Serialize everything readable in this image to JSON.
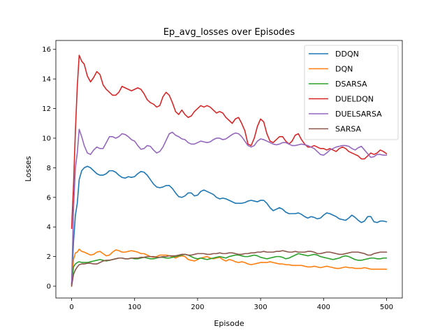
{
  "chart_data": {
    "type": "line",
    "title": "Ep_avg_losses over Episodes",
    "xlabel": "Episode",
    "ylabel": "Losses",
    "xlim": [
      -25,
      525
    ],
    "ylim": [
      -0.8,
      16.6
    ],
    "xticks": [
      0,
      100,
      200,
      300,
      400,
      500
    ],
    "yticks": [
      0,
      2,
      4,
      6,
      8,
      10,
      12,
      14,
      16
    ],
    "grid": false,
    "legend_position": "top-right",
    "series": [
      {
        "name": "DDQN",
        "color": "#1f77b4",
        "x": [
          0,
          3,
          6,
          9,
          12,
          16,
          20,
          25,
          30,
          35,
          40,
          45,
          50,
          55,
          60,
          65,
          70,
          75,
          80,
          85,
          90,
          95,
          100,
          105,
          110,
          115,
          120,
          125,
          130,
          135,
          140,
          145,
          150,
          155,
          160,
          165,
          170,
          175,
          180,
          185,
          190,
          195,
          200,
          205,
          210,
          215,
          220,
          225,
          230,
          235,
          240,
          245,
          250,
          255,
          260,
          265,
          270,
          275,
          280,
          285,
          290,
          295,
          300,
          305,
          310,
          315,
          320,
          325,
          330,
          335,
          340,
          345,
          350,
          355,
          360,
          365,
          370,
          375,
          380,
          385,
          390,
          395,
          400,
          405,
          410,
          415,
          420,
          425,
          430,
          435,
          440,
          445,
          450,
          455,
          460,
          465,
          470,
          475,
          480,
          485,
          490,
          495,
          500
        ],
        "y": [
          0.1,
          3.0,
          4.8,
          5.6,
          7.2,
          7.8,
          8.0,
          8.1,
          8.0,
          7.8,
          7.6,
          7.5,
          7.5,
          7.6,
          7.8,
          7.8,
          7.7,
          7.5,
          7.35,
          7.3,
          7.4,
          7.35,
          7.4,
          7.6,
          7.75,
          7.7,
          7.5,
          7.2,
          6.9,
          6.7,
          6.65,
          6.7,
          6.8,
          6.8,
          6.6,
          6.3,
          6.05,
          6.0,
          6.1,
          6.3,
          6.3,
          6.1,
          6.15,
          6.4,
          6.5,
          6.4,
          6.3,
          6.2,
          6.0,
          5.9,
          5.95,
          5.9,
          5.8,
          5.7,
          5.6,
          5.6,
          5.6,
          5.65,
          5.75,
          5.8,
          5.75,
          5.7,
          5.8,
          5.8,
          5.6,
          5.3,
          5.1,
          5.2,
          5.3,
          5.2,
          5.0,
          4.9,
          4.9,
          4.9,
          4.95,
          4.85,
          4.7,
          4.6,
          4.7,
          4.65,
          4.55,
          4.6,
          4.8,
          4.95,
          4.9,
          4.8,
          4.7,
          4.55,
          4.5,
          4.45,
          4.6,
          4.8,
          4.65,
          4.45,
          4.3,
          4.4,
          4.7,
          4.7,
          4.35,
          4.3,
          4.4,
          4.4,
          4.35
        ]
      },
      {
        "name": "DQN",
        "color": "#ff7f0e",
        "x": [
          0,
          3,
          6,
          9,
          12,
          16,
          20,
          25,
          30,
          35,
          40,
          45,
          50,
          55,
          60,
          65,
          70,
          75,
          80,
          85,
          90,
          95,
          100,
          105,
          110,
          115,
          120,
          125,
          130,
          135,
          140,
          145,
          150,
          155,
          160,
          165,
          170,
          175,
          180,
          185,
          190,
          195,
          200,
          205,
          210,
          215,
          220,
          225,
          230,
          235,
          240,
          245,
          250,
          255,
          260,
          265,
          270,
          275,
          280,
          285,
          290,
          295,
          300,
          305,
          310,
          315,
          320,
          325,
          330,
          335,
          340,
          345,
          350,
          355,
          360,
          365,
          370,
          375,
          380,
          385,
          390,
          395,
          400,
          405,
          410,
          415,
          420,
          425,
          430,
          435,
          440,
          445,
          450,
          455,
          460,
          465,
          470,
          475,
          480,
          485,
          490,
          495,
          500
        ],
        "y": [
          0.1,
          1.8,
          2.25,
          2.3,
          2.5,
          2.35,
          2.3,
          2.2,
          2.1,
          2.15,
          2.3,
          2.35,
          2.2,
          2.05,
          2.1,
          2.3,
          2.45,
          2.4,
          2.3,
          2.3,
          2.35,
          2.4,
          2.35,
          2.3,
          2.2,
          2.2,
          2.1,
          2.0,
          1.95,
          2.0,
          2.1,
          2.1,
          2.1,
          2.05,
          2.0,
          1.9,
          2.0,
          2.05,
          2.0,
          1.8,
          1.75,
          1.7,
          1.8,
          1.9,
          1.95,
          2.0,
          1.9,
          1.85,
          1.9,
          1.95,
          1.8,
          1.7,
          1.8,
          1.75,
          1.65,
          1.6,
          1.65,
          1.6,
          1.5,
          1.45,
          1.5,
          1.55,
          1.6,
          1.6,
          1.6,
          1.65,
          1.6,
          1.55,
          1.5,
          1.5,
          1.45,
          1.45,
          1.4,
          1.4,
          1.4,
          1.4,
          1.35,
          1.3,
          1.3,
          1.35,
          1.3,
          1.25,
          1.3,
          1.35,
          1.3,
          1.25,
          1.2,
          1.2,
          1.25,
          1.3,
          1.25,
          1.25,
          1.2,
          1.2,
          1.2,
          1.25,
          1.2,
          1.15,
          1.15,
          1.15,
          1.15,
          1.15,
          1.15
        ]
      },
      {
        "name": "DSARSA",
        "color": "#2ca02c",
        "x": [
          0,
          3,
          6,
          9,
          12,
          16,
          20,
          25,
          30,
          35,
          40,
          45,
          50,
          55,
          60,
          65,
          70,
          75,
          80,
          85,
          90,
          95,
          100,
          105,
          110,
          115,
          120,
          125,
          130,
          135,
          140,
          145,
          150,
          155,
          160,
          165,
          170,
          175,
          180,
          185,
          190,
          195,
          200,
          205,
          210,
          215,
          220,
          225,
          230,
          235,
          240,
          245,
          250,
          255,
          260,
          265,
          270,
          275,
          280,
          285,
          290,
          295,
          300,
          305,
          310,
          315,
          320,
          325,
          330,
          335,
          340,
          345,
          350,
          355,
          360,
          365,
          370,
          375,
          380,
          385,
          390,
          395,
          400,
          405,
          410,
          415,
          420,
          425,
          430,
          435,
          440,
          445,
          450,
          455,
          460,
          465,
          470,
          475,
          480,
          485,
          490,
          495,
          500
        ],
        "y": [
          0.0,
          1.3,
          1.5,
          1.6,
          1.65,
          1.6,
          1.6,
          1.6,
          1.65,
          1.7,
          1.75,
          1.8,
          1.75,
          1.7,
          1.75,
          1.8,
          1.85,
          1.9,
          1.9,
          1.85,
          1.85,
          1.9,
          1.85,
          1.85,
          1.9,
          1.95,
          1.9,
          1.85,
          1.85,
          1.9,
          1.95,
          1.95,
          1.9,
          1.9,
          1.95,
          2.0,
          2.05,
          2.1,
          2.15,
          2.1,
          2.0,
          1.9,
          1.85,
          1.9,
          1.85,
          1.8,
          1.85,
          1.9,
          1.95,
          2.0,
          1.95,
          1.9,
          2.0,
          2.05,
          2.1,
          2.1,
          2.05,
          2.0,
          2.0,
          2.05,
          2.1,
          2.05,
          1.95,
          1.9,
          1.85,
          1.9,
          1.95,
          2.0,
          2.0,
          1.95,
          1.85,
          1.9,
          2.0,
          2.1,
          2.2,
          2.15,
          2.1,
          2.05,
          2.1,
          2.15,
          2.1,
          2.0,
          1.95,
          1.9,
          1.85,
          1.8,
          1.85,
          1.9,
          2.0,
          2.05,
          2.0,
          1.9,
          1.8,
          1.75,
          1.75,
          1.8,
          1.85,
          1.9,
          1.9,
          1.85,
          1.85,
          1.9,
          1.9
        ]
      },
      {
        "name": "DUELDQN",
        "color": "#d62728",
        "x": [
          0,
          3,
          6,
          9,
          12,
          16,
          20,
          25,
          30,
          35,
          40,
          45,
          50,
          55,
          60,
          65,
          70,
          75,
          80,
          85,
          90,
          95,
          100,
          105,
          110,
          115,
          120,
          125,
          130,
          135,
          140,
          145,
          150,
          155,
          160,
          165,
          170,
          175,
          180,
          185,
          190,
          195,
          200,
          205,
          210,
          215,
          220,
          225,
          230,
          235,
          240,
          245,
          250,
          255,
          260,
          265,
          270,
          275,
          280,
          285,
          290,
          295,
          300,
          305,
          310,
          315,
          320,
          325,
          330,
          335,
          340,
          345,
          350,
          355,
          360,
          365,
          370,
          375,
          380,
          385,
          390,
          395,
          400,
          405,
          410,
          415,
          420,
          425,
          430,
          435,
          440,
          445,
          450,
          455,
          460,
          465,
          470,
          475,
          480,
          485,
          490,
          495,
          500
        ],
        "y": [
          3.9,
          6.8,
          10.5,
          13.5,
          15.6,
          15.2,
          15.0,
          14.2,
          13.8,
          14.1,
          14.5,
          14.3,
          13.6,
          13.3,
          13.1,
          12.9,
          12.9,
          13.1,
          13.5,
          13.4,
          13.3,
          13.2,
          13.3,
          13.4,
          13.3,
          13.0,
          12.6,
          12.4,
          12.3,
          12.1,
          12.2,
          12.8,
          13.1,
          12.9,
          12.4,
          11.8,
          11.6,
          11.9,
          11.6,
          11.4,
          11.5,
          11.8,
          12.0,
          12.2,
          12.1,
          12.2,
          12.1,
          11.9,
          11.7,
          11.8,
          11.7,
          11.4,
          11.2,
          11.0,
          11.3,
          11.4,
          11.0,
          10.5,
          9.6,
          9.5,
          10.0,
          10.8,
          11.3,
          11.1,
          10.3,
          9.8,
          9.7,
          9.9,
          10.1,
          10.1,
          9.8,
          9.6,
          9.8,
          10.2,
          10.3,
          9.9,
          9.6,
          9.4,
          9.4,
          9.5,
          9.4,
          9.3,
          9.3,
          9.2,
          9.3,
          9.2,
          9.1,
          9.3,
          9.4,
          9.3,
          9.1,
          9.0,
          8.9,
          8.8,
          8.6,
          8.6,
          8.8,
          9.0,
          8.9,
          9.0,
          9.2,
          9.1,
          8.95
        ]
      },
      {
        "name": "DUELSARSA",
        "color": "#9467bd",
        "x": [
          0,
          3,
          6,
          9,
          12,
          16,
          20,
          25,
          30,
          35,
          40,
          45,
          50,
          55,
          60,
          65,
          70,
          75,
          80,
          85,
          90,
          95,
          100,
          105,
          110,
          115,
          120,
          125,
          130,
          135,
          140,
          145,
          150,
          155,
          160,
          165,
          170,
          175,
          180,
          185,
          190,
          195,
          200,
          205,
          210,
          215,
          220,
          225,
          230,
          235,
          240,
          245,
          250,
          255,
          260,
          265,
          270,
          275,
          280,
          285,
          290,
          295,
          300,
          305,
          310,
          315,
          320,
          325,
          330,
          335,
          340,
          345,
          350,
          355,
          360,
          365,
          370,
          375,
          380,
          385,
          390,
          395,
          400,
          405,
          410,
          415,
          420,
          425,
          430,
          435,
          440,
          445,
          450,
          455,
          460,
          465,
          470,
          475,
          480,
          485,
          490,
          495,
          500
        ],
        "y": [
          0.1,
          5.2,
          8.0,
          9.0,
          10.6,
          10.1,
          9.5,
          9.0,
          8.9,
          9.2,
          9.4,
          9.3,
          9.3,
          9.7,
          10.1,
          10.1,
          10.0,
          10.1,
          10.3,
          10.25,
          10.1,
          9.9,
          9.8,
          9.5,
          9.25,
          9.3,
          9.5,
          9.45,
          9.2,
          9.0,
          9.1,
          9.4,
          9.85,
          10.3,
          10.4,
          10.2,
          10.1,
          9.95,
          9.9,
          9.7,
          9.6,
          9.6,
          9.7,
          9.8,
          9.75,
          9.7,
          9.75,
          9.9,
          10.0,
          10.0,
          9.9,
          9.95,
          10.1,
          10.25,
          10.35,
          10.3,
          10.1,
          9.8,
          9.5,
          9.4,
          9.5,
          9.8,
          9.95,
          9.9,
          9.8,
          9.7,
          9.6,
          9.55,
          9.6,
          9.7,
          9.7,
          9.6,
          9.5,
          9.5,
          9.55,
          9.6,
          9.55,
          9.5,
          9.4,
          9.3,
          9.1,
          8.9,
          8.85,
          9.0,
          9.2,
          9.3,
          9.4,
          9.45,
          9.5,
          9.5,
          9.45,
          9.3,
          9.2,
          9.35,
          9.45,
          9.2,
          8.95,
          8.7,
          8.75,
          8.9,
          8.9,
          8.85,
          8.85
        ]
      },
      {
        "name": "SARSA",
        "color": "#8c564b",
        "x": [
          0,
          3,
          6,
          9,
          12,
          16,
          20,
          25,
          30,
          35,
          40,
          45,
          50,
          55,
          60,
          65,
          70,
          75,
          80,
          85,
          90,
          95,
          100,
          105,
          110,
          115,
          120,
          125,
          130,
          135,
          140,
          145,
          150,
          155,
          160,
          165,
          170,
          175,
          180,
          185,
          190,
          195,
          200,
          205,
          210,
          215,
          220,
          225,
          230,
          235,
          240,
          245,
          250,
          255,
          260,
          265,
          270,
          275,
          280,
          285,
          290,
          295,
          300,
          305,
          310,
          315,
          320,
          325,
          330,
          335,
          340,
          345,
          350,
          355,
          360,
          365,
          370,
          375,
          380,
          385,
          390,
          395,
          400,
          405,
          410,
          415,
          420,
          425,
          430,
          435,
          440,
          445,
          450,
          455,
          460,
          465,
          470,
          475,
          480,
          485,
          490,
          495,
          500
        ],
        "y": [
          0.0,
          0.8,
          1.1,
          1.3,
          1.45,
          1.5,
          1.5,
          1.55,
          1.55,
          1.5,
          1.5,
          1.6,
          1.7,
          1.75,
          1.75,
          1.8,
          1.85,
          1.9,
          1.9,
          1.85,
          1.85,
          1.9,
          1.9,
          1.9,
          1.95,
          1.95,
          2.0,
          2.0,
          2.0,
          1.95,
          1.95,
          2.0,
          2.0,
          2.05,
          2.05,
          2.05,
          2.1,
          2.15,
          2.15,
          2.1,
          2.1,
          2.15,
          2.2,
          2.2,
          2.2,
          2.15,
          2.15,
          2.2,
          2.2,
          2.25,
          2.2,
          2.2,
          2.25,
          2.25,
          2.2,
          2.15,
          2.15,
          2.2,
          2.2,
          2.25,
          2.25,
          2.3,
          2.3,
          2.35,
          2.3,
          2.3,
          2.3,
          2.35,
          2.35,
          2.4,
          2.35,
          2.3,
          2.3,
          2.35,
          2.3,
          2.3,
          2.3,
          2.35,
          2.35,
          2.3,
          2.2,
          2.2,
          2.25,
          2.3,
          2.3,
          2.25,
          2.2,
          2.15,
          2.15,
          2.2,
          2.25,
          2.3,
          2.3,
          2.3,
          2.25,
          2.2,
          2.1,
          2.1,
          2.2,
          2.25,
          2.3,
          2.3,
          2.3
        ]
      }
    ]
  }
}
